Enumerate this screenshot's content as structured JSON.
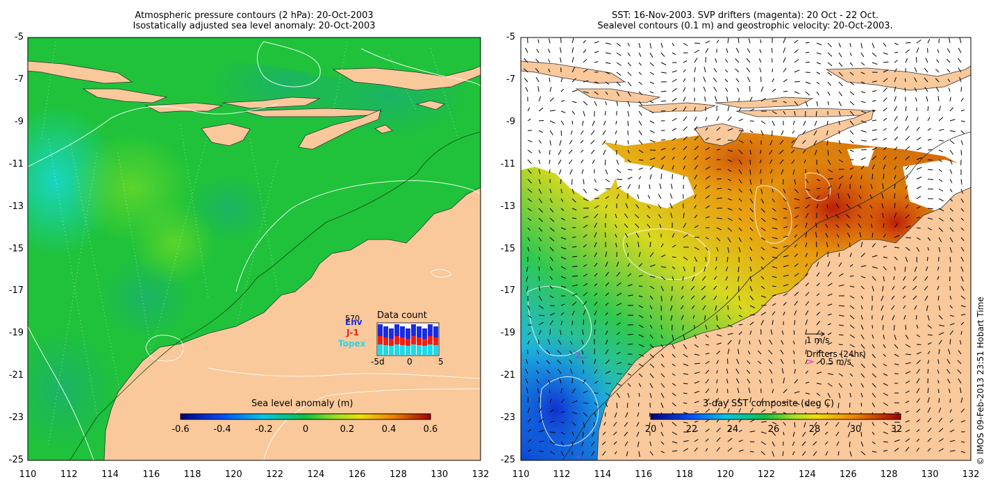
{
  "left_panel": {
    "title_line1": "Atmospheric pressure contours (2 hPa): 20-Oct-2003",
    "title_line2": "Isostatically adjusted sea level anomaly: 20-Oct-2003",
    "colorbar_title": "Sea level anomaly (m)",
    "colorbar_ticks": [
      "-0.6",
      "-0.4",
      "-0.2",
      "0",
      "0.2",
      "0.4",
      "0.6"
    ],
    "inset": {
      "count_label": "570",
      "title": "Data count",
      "env_label": "Env",
      "j1_label": "J-1",
      "topex_label": "Topex",
      "x_ticks": [
        "-5d",
        "0",
        "5"
      ]
    }
  },
  "right_panel": {
    "title_line1": "SST: 16-Nov-2003. SVP drifters (magenta): 20 Oct - 22 Oct.",
    "title_line2": "Sealevel contours (0.1 m) and geostrophic velocity: 20-Oct-2003.",
    "colorbar_title": "3-day SST composite (deg C)",
    "colorbar_ticks": [
      "20",
      "22",
      "24",
      "26",
      "28",
      "30",
      "32"
    ],
    "velocity_label": "1 m/s",
    "drifters_label": "Drifters (24hr)",
    "drifters_speed": "0.5 m/s"
  },
  "axes": {
    "lat_ticks": [
      "-5",
      "-7",
      "-9",
      "-11",
      "-13",
      "-15",
      "-17",
      "-19",
      "-21",
      "-23",
      "-25"
    ],
    "lon_ticks": [
      "110",
      "112",
      "114",
      "116",
      "118",
      "120",
      "122",
      "124",
      "126",
      "128",
      "130",
      "132"
    ]
  },
  "copyright": "© IMOS 09-Feb-2013 23:51 Hobart Time",
  "colors": {
    "land": "#f9c89b",
    "sea_green": "#22c93a",
    "sst_orange": "#e8860c",
    "env": "#1a2be0",
    "j1": "#f02010",
    "topex": "#20d8e8",
    "magenta": "#e020e0"
  }
}
